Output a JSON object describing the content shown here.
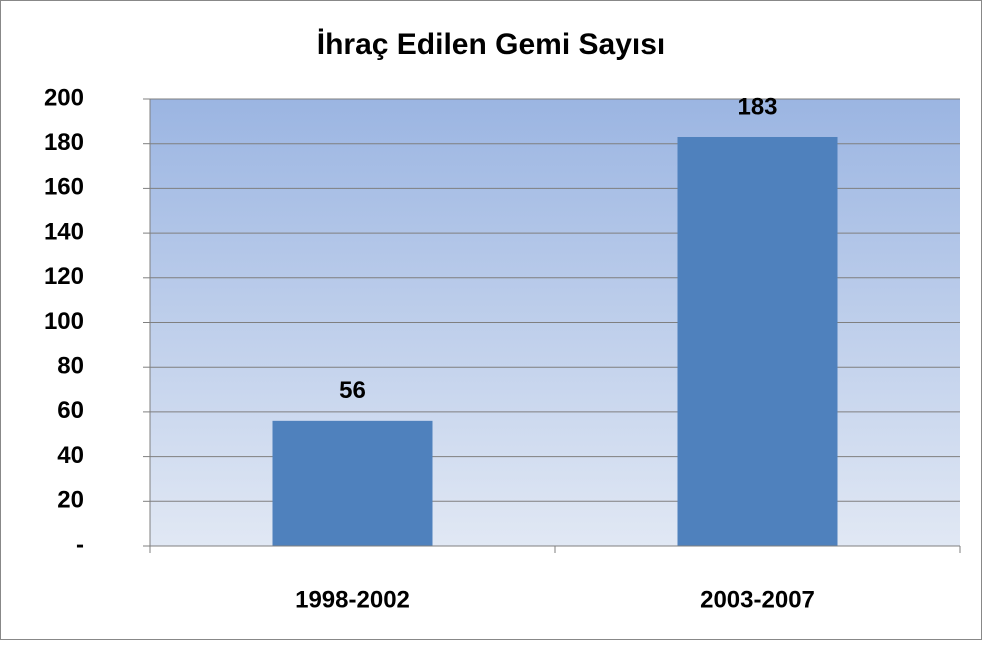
{
  "chart_data": {
    "type": "bar",
    "title": "İhraç Edilen Gemi Sayısı",
    "categories": [
      "1998-2002",
      "2003-2007"
    ],
    "values": [
      56,
      183
    ],
    "color": "#4f81bd",
    "ylim": [
      0,
      200
    ],
    "yticks": [
      {
        "value": 0,
        "label": "-"
      },
      20,
      40,
      60,
      80,
      100,
      120,
      140,
      160,
      180,
      200
    ],
    "grid": true
  }
}
